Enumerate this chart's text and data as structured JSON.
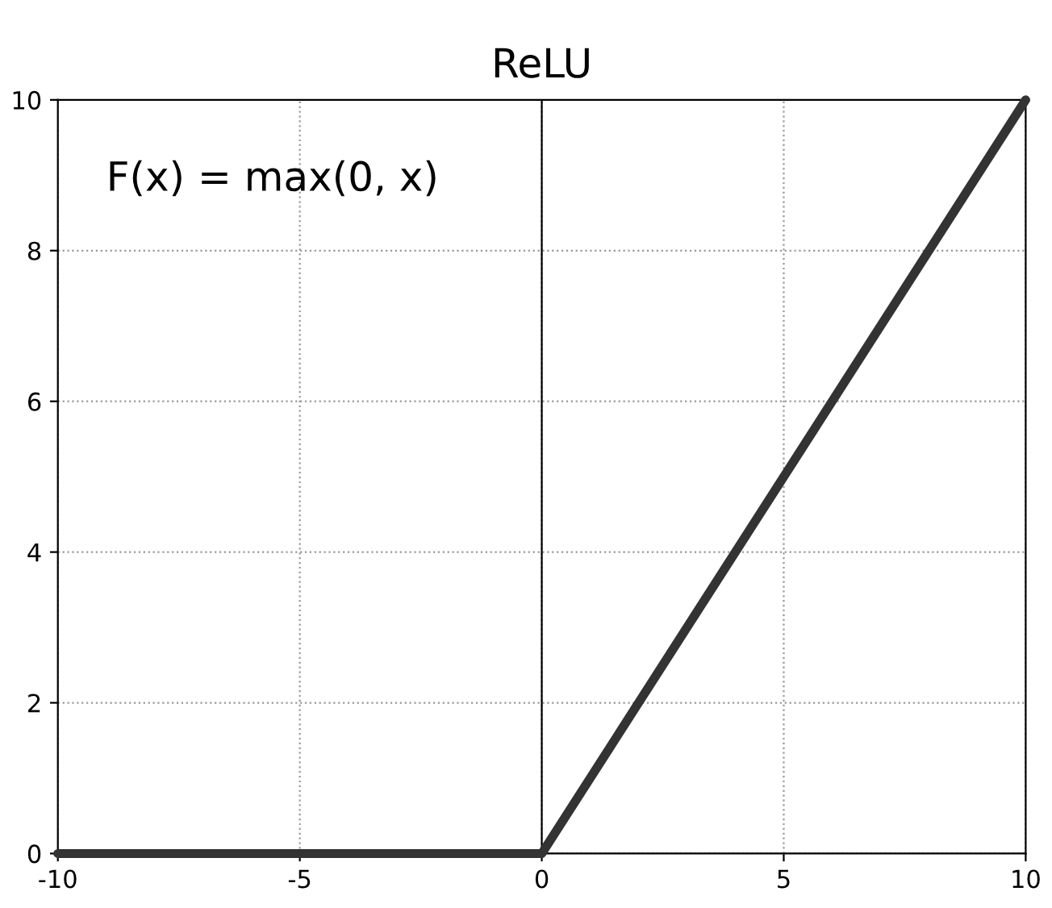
{
  "chart_data": {
    "type": "line",
    "title": "ReLU",
    "x": [
      -10,
      0,
      10
    ],
    "series": [
      {
        "color": "#333333",
        "values": [
          0,
          0,
          10
        ]
      }
    ],
    "xlim": [
      -10,
      10
    ],
    "xticks": [
      -10,
      -5,
      0,
      5,
      10
    ],
    "ylim": [
      0,
      10
    ],
    "yticks": [
      0,
      2,
      4,
      6,
      8,
      10
    ],
    "grid": true,
    "marker": "none",
    "line_style": "solid",
    "ref_lines": [
      {
        "axis": "x",
        "value": 0,
        "color": "#000000",
        "line_style": "solid"
      }
    ],
    "annotations": [
      "F(x) = max(0, x)"
    ]
  }
}
